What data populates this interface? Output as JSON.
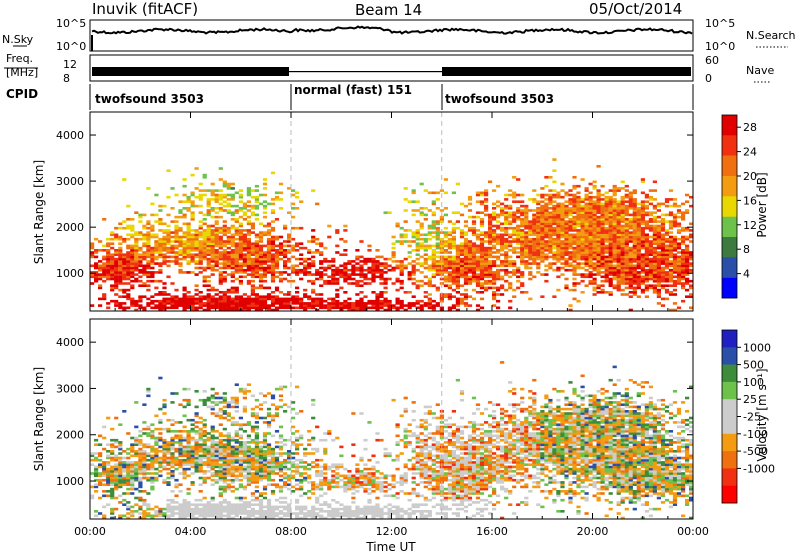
{
  "header": {
    "station": "Inuvik (fitACF)",
    "beam": "Beam 14",
    "date": "05/Oct/2014"
  },
  "panels": {
    "nsky": {
      "label": "N.Sky",
      "top_tick": "10^5",
      "bottom_tick": "10^0",
      "right_label": "N.Search",
      "right_top_tick": "10^5",
      "right_bottom_tick": "10^0"
    },
    "freq": {
      "label_line1": "Freq.",
      "label_line2": "[MHz]",
      "tick_top": "12",
      "tick_bottom": "8",
      "right_label": "Nave",
      "right_tick_top": "60",
      "right_tick_bottom": "0"
    },
    "cpid": {
      "label": "CPID",
      "segments": [
        {
          "name": "twofsound 3503",
          "start_h": 0,
          "end_h": 8
        },
        {
          "name": "normal (fast) 151",
          "start_h": 8,
          "end_h": 14
        },
        {
          "name": "twofsound 3503",
          "start_h": 14,
          "end_h": 24
        }
      ]
    }
  },
  "colors": {
    "power": [
      "#0000ff",
      "#2a4fa8",
      "#3c7a40",
      "#6cc24a",
      "#e8d800",
      "#f39c12",
      "#f07010",
      "#f03010",
      "#e00000"
    ],
    "velocity": [
      "#ff0000",
      "#f03010",
      "#f07010",
      "#f39c12",
      "#cccccc",
      "#cccccc",
      "#6cc24a",
      "#3c8c3c",
      "#2a4fa8",
      "#2020c0"
    ]
  },
  "chart_data": [
    {
      "type": "heatmap",
      "quantity": "Power",
      "xlabel": "Time UT",
      "ylabel": "Slant Range [km]",
      "xlim_hours": [
        0,
        24
      ],
      "ylim": [
        180,
        4500
      ],
      "x_ticks": [
        "00:00",
        "04:00",
        "08:00",
        "12:00",
        "16:00",
        "20:00",
        "00:00"
      ],
      "y_ticks": [
        1000,
        2000,
        3000,
        4000
      ],
      "colorbar": {
        "label": "Power [dB]",
        "ticks": [
          4,
          8,
          12,
          16,
          20,
          24,
          28
        ],
        "range": [
          0,
          30
        ]
      }
    },
    {
      "type": "heatmap",
      "quantity": "Velocity",
      "xlabel": "Time UT",
      "ylabel": "Slant Range [km]",
      "xlim_hours": [
        0,
        24
      ],
      "ylim": [
        180,
        4500
      ],
      "x_ticks": [
        "00:00",
        "04:00",
        "08:00",
        "12:00",
        "16:00",
        "20:00",
        "00:00"
      ],
      "y_ticks": [
        1000,
        2000,
        3000,
        4000
      ],
      "colorbar": {
        "label": "Velocity [m s⁻¹]",
        "ticks": [
          1000,
          500,
          100,
          25,
          -25,
          -100,
          -500,
          -1000
        ]
      }
    }
  ]
}
